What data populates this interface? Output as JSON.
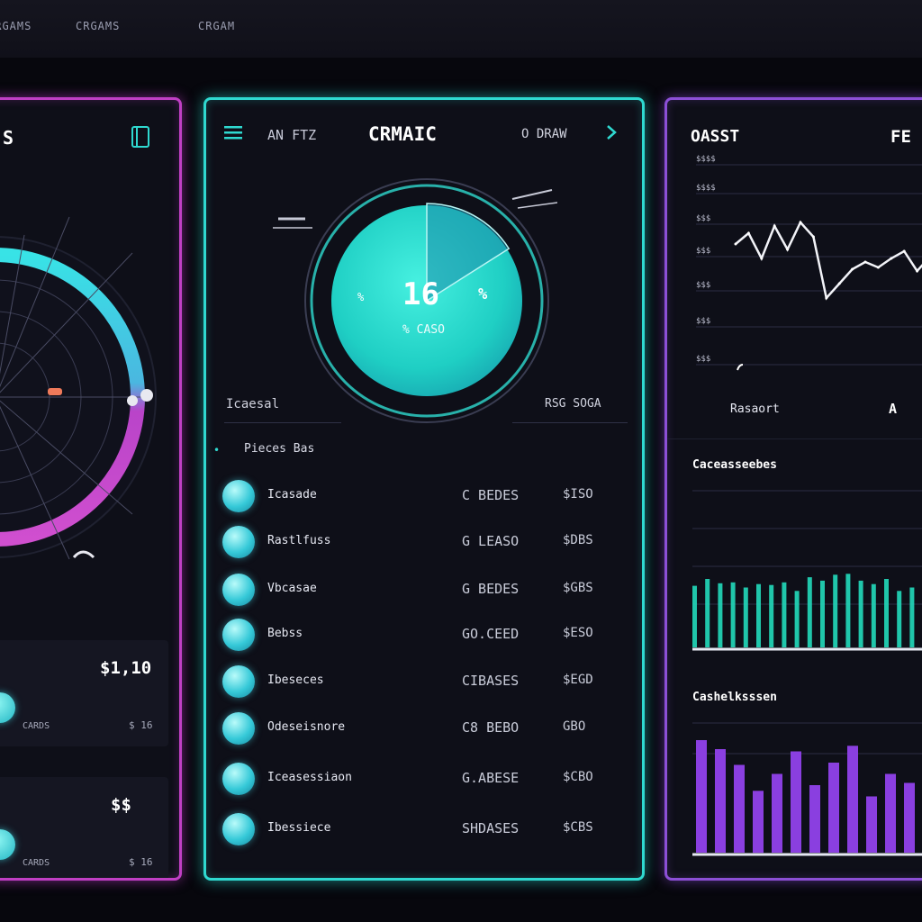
{
  "topbar": {
    "items": [
      "CRGAMS",
      "CRGAMS",
      "CRGAM"
    ]
  },
  "left_panel": {
    "title": "S",
    "corner_icon": "window-icon",
    "card1": {
      "value": "$1,10",
      "label": "CARDS",
      "sub": "$ 16"
    },
    "card2": {
      "value": "$$",
      "label": "CARDS",
      "sub": "$ 16"
    }
  },
  "mid_panel": {
    "menu_icon": "hamburger-icon",
    "header_left": "AN FTZ",
    "title": "CRMAIC",
    "header_right": "O DRAW",
    "gauge": {
      "value": "16",
      "suffix": "%",
      "prefix": "%",
      "caption": "% CASO",
      "level": 0.16
    },
    "label_left": "Icaesal",
    "label_right": "RSG SOGA",
    "list_header": "Pieces Bas",
    "rows": [
      {
        "name": "Icasade",
        "col2": "C BEDES",
        "col3": "$ISO"
      },
      {
        "name": "Rastlfuss",
        "col2": "G LEASO",
        "col3": "$DBS"
      },
      {
        "name": "Vbcasae",
        "col2": "G BEDES",
        "col3": "$GBS"
      },
      {
        "name": "Bebss",
        "col2": "GO.CEED",
        "col3": "$ESO"
      },
      {
        "name": "Ibeseces",
        "col2": "CIBASES",
        "col3": "$EGD"
      },
      {
        "name": "Odeseisnore",
        "col2": "C8 BEBO",
        "col3": "GBO"
      },
      {
        "name": "Iceasessiaon",
        "col2": "G.ABESE",
        "col3": "$CBO"
      },
      {
        "name": "Ibessiece",
        "col2": "SHDASES",
        "col3": "$CBS"
      }
    ]
  },
  "right_panel": {
    "title": "OASST",
    "title_right": "FE",
    "y_ticks": [
      "$$$$",
      "$$$$",
      "$$$",
      "$$$",
      "$$$",
      "$$$",
      "$$$"
    ],
    "footer_left": "Rasaort",
    "footer_right": "A",
    "section2_title": "Caceasseebes",
    "section3_title": "Cashelksssen"
  },
  "colors": {
    "teal": "#2fd9d0",
    "magenta": "#c03fc4",
    "purple": "#8c4fd6",
    "bar_teal": "#22d6b8",
    "bar_purple": "#8a3fe0"
  },
  "chart_data": [
    {
      "type": "line",
      "title": "OASST",
      "values": [
        60,
        66,
        52,
        70,
        57,
        72,
        64,
        30,
        38,
        46,
        50,
        47,
        52,
        56,
        45,
        53
      ]
    },
    {
      "type": "bar",
      "title": "Caceasseebes",
      "values": [
        72,
        80,
        75,
        76,
        70,
        74,
        73,
        76,
        66,
        82,
        78,
        85,
        86,
        78,
        74,
        80,
        66,
        70,
        76
      ]
    },
    {
      "type": "bar",
      "title": "Cashelksssen",
      "values": [
        100,
        92,
        78,
        55,
        70,
        90,
        60,
        80,
        95,
        50,
        70,
        62
      ]
    }
  ]
}
